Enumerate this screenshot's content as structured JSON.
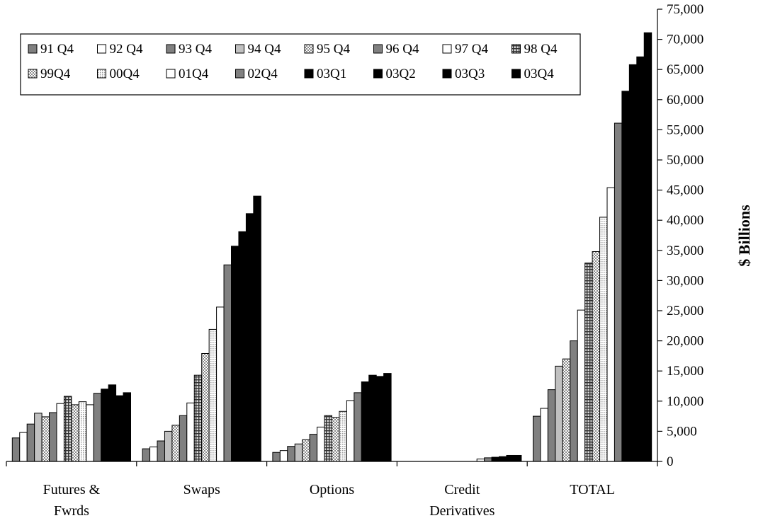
{
  "chart_data": {
    "type": "bar",
    "ylabel": "$ Billions",
    "ylim": [
      0,
      75000
    ],
    "ytick_step": 5000,
    "yticks": [
      "0",
      "5,000",
      "10,000",
      "15,000",
      "20,000",
      "25,000",
      "30,000",
      "35,000",
      "40,000",
      "45,000",
      "50,000",
      "55,000",
      "60,000",
      "65,000",
      "70,000",
      "75,000"
    ],
    "y_axis_side": "right",
    "legend_position": "top-left",
    "grid": false,
    "categories": [
      [
        "Futures &",
        "Fwrds"
      ],
      [
        "Swaps"
      ],
      [
        "Options"
      ],
      [
        "Credit",
        "Derivatives"
      ],
      [
        "TOTAL"
      ]
    ],
    "series": [
      {
        "name": "91 Q4",
        "pattern": "gray",
        "values": [
          3900,
          2100,
          1500,
          0,
          7500
        ]
      },
      {
        "name": "92 Q4",
        "pattern": "white",
        "values": [
          4800,
          2400,
          1800,
          0,
          8800
        ]
      },
      {
        "name": "93 Q4",
        "pattern": "gray",
        "values": [
          6200,
          3400,
          2500,
          0,
          11900
        ]
      },
      {
        "name": "94 Q4",
        "pattern": "lightgray",
        "values": [
          8000,
          5000,
          2900,
          0,
          15800
        ]
      },
      {
        "name": "95 Q4",
        "pattern": "dots",
        "values": [
          7400,
          6000,
          3600,
          0,
          17000
        ]
      },
      {
        "name": "96 Q4",
        "pattern": "gray",
        "values": [
          8100,
          7600,
          4500,
          0,
          20000
        ]
      },
      {
        "name": "97 Q4",
        "pattern": "white",
        "values": [
          9600,
          9700,
          5700,
          0,
          25100
        ]
      },
      {
        "name": "98 Q4",
        "pattern": "grid",
        "values": [
          10800,
          14300,
          7600,
          0,
          32900
        ]
      },
      {
        "name": "99Q4",
        "pattern": "dots",
        "values": [
          9400,
          17900,
          7300,
          0,
          34800
        ]
      },
      {
        "name": "00Q4",
        "pattern": "dots2",
        "values": [
          9900,
          21900,
          8300,
          0,
          40500
        ]
      },
      {
        "name": "01Q4",
        "pattern": "white",
        "values": [
          9400,
          25600,
          10100,
          400,
          45400
        ]
      },
      {
        "name": "02Q4",
        "pattern": "gray",
        "values": [
          11300,
          32600,
          11400,
          600,
          56100
        ]
      },
      {
        "name": "03Q1",
        "pattern": "black",
        "values": [
          12000,
          35700,
          13200,
          700,
          61400
        ]
      },
      {
        "name": "03Q2",
        "pattern": "black",
        "values": [
          12700,
          38100,
          14300,
          800,
          65800
        ]
      },
      {
        "name": "03Q3",
        "pattern": "black",
        "values": [
          10900,
          41100,
          14100,
          1000,
          67100
        ]
      },
      {
        "name": "03Q4",
        "pattern": "black",
        "values": [
          11400,
          44000,
          14600,
          1000,
          71100
        ]
      }
    ]
  }
}
